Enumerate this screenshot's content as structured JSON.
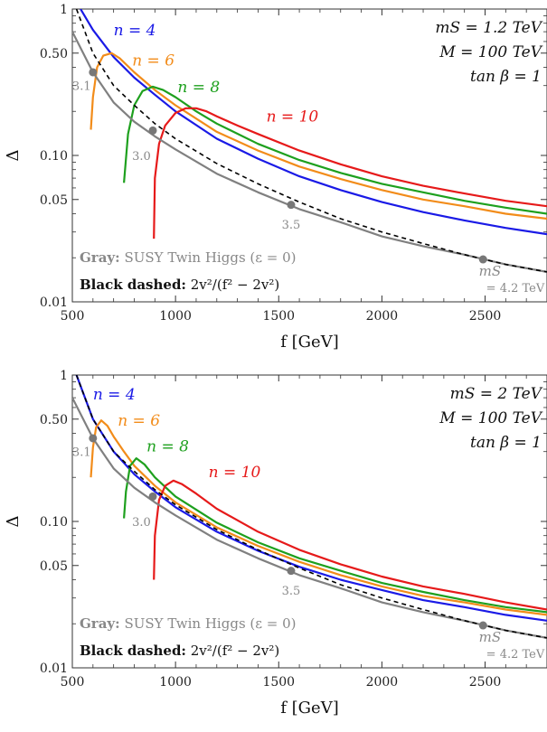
{
  "chart_data": [
    {
      "type": "line",
      "xlabel": "f [GeV]",
      "ylabel": "Δ",
      "xlim": [
        500,
        2800
      ],
      "ylim": [
        0.01,
        1
      ],
      "yscale": "log",
      "xticks": [
        "500",
        "1000",
        "1500",
        "2000",
        "2500"
      ],
      "yticks": [
        "1",
        "0.50",
        "0.10",
        "0.05",
        "0.01"
      ],
      "grid": false,
      "params": [
        "mS = 1.2 TeV",
        "M = 100 TeV",
        "tan β = 1"
      ],
      "legend": {
        "gray_label": "Gray:",
        "gray_text": "SUSY Twin Higgs (ε = 0)",
        "black_label": "Black dashed:",
        "black_text": "2v²/(f² − 2v²)"
      },
      "series": [
        {
          "name": "n = 4",
          "color": "#1a1ae6",
          "style": "solid",
          "x": [
            540,
            600,
            700,
            800,
            900,
            1000,
            1200,
            1400,
            1600,
            1800,
            2000,
            2200,
            2400,
            2600,
            2800
          ],
          "y": [
            1.0,
            0.72,
            0.47,
            0.34,
            0.26,
            0.2,
            0.13,
            0.095,
            0.072,
            0.058,
            0.048,
            0.041,
            0.036,
            0.032,
            0.029
          ]
        },
        {
          "name": "n = 6",
          "color": "#f28c1a",
          "style": "solid",
          "x": [
            590,
            600,
            620,
            650,
            690,
            730,
            800,
            900,
            1000,
            1200,
            1400,
            1600,
            1800,
            2000,
            2200,
            2400,
            2600,
            2800
          ],
          "y": [
            0.15,
            0.25,
            0.4,
            0.48,
            0.5,
            0.46,
            0.37,
            0.28,
            0.22,
            0.145,
            0.108,
            0.084,
            0.069,
            0.058,
            0.05,
            0.045,
            0.04,
            0.037
          ]
        },
        {
          "name": "n = 8",
          "color": "#1ea01e",
          "style": "solid",
          "x": [
            750,
            770,
            800,
            840,
            890,
            940,
            1000,
            1100,
            1200,
            1400,
            1600,
            1800,
            2000,
            2200,
            2400,
            2600,
            2800
          ],
          "y": [
            0.065,
            0.14,
            0.22,
            0.275,
            0.295,
            0.28,
            0.25,
            0.2,
            0.165,
            0.12,
            0.093,
            0.076,
            0.064,
            0.056,
            0.049,
            0.044,
            0.04
          ]
        },
        {
          "name": "n = 10",
          "color": "#e61a1a",
          "style": "solid",
          "x": [
            895,
            900,
            920,
            950,
            1000,
            1050,
            1100,
            1150,
            1200,
            1300,
            1400,
            1600,
            1800,
            2000,
            2200,
            2400,
            2600,
            2800
          ],
          "y": [
            0.027,
            0.07,
            0.12,
            0.16,
            0.195,
            0.21,
            0.21,
            0.2,
            0.185,
            0.16,
            0.14,
            0.108,
            0.087,
            0.072,
            0.062,
            0.055,
            0.049,
            0.045
          ]
        },
        {
          "name": "SUSY Twin Higgs (ε = 0)",
          "color": "#808080",
          "style": "solid",
          "x": [
            500,
            600,
            700,
            800,
            900,
            1000,
            1200,
            1400,
            1600,
            1800,
            2000,
            2200,
            2400,
            2600,
            2800
          ],
          "y": [
            0.7,
            0.37,
            0.23,
            0.17,
            0.135,
            0.11,
            0.075,
            0.056,
            0.043,
            0.035,
            0.028,
            0.024,
            0.021,
            0.018,
            0.016
          ]
        },
        {
          "name": "2v²/(f² − 2v²)",
          "color": "#000000",
          "style": "dashed",
          "x": [
            520,
            600,
            700,
            800,
            900,
            1000,
            1200,
            1400,
            1600,
            1800,
            2000,
            2200,
            2400,
            2600,
            2800
          ],
          "y": [
            1.0,
            0.5,
            0.3,
            0.22,
            0.165,
            0.13,
            0.088,
            0.064,
            0.048,
            0.037,
            0.03,
            0.025,
            0.021,
            0.018,
            0.016
          ]
        }
      ],
      "curve_labels": [
        {
          "text": "n = 4",
          "x": 700,
          "y": 0.66,
          "color": "#1a1ae6"
        },
        {
          "text": "n = 6",
          "x": 790,
          "y": 0.41,
          "color": "#f28c1a"
        },
        {
          "text": "n = 8",
          "x": 1010,
          "y": 0.27,
          "color": "#1ea01e"
        },
        {
          "text": "n = 10",
          "x": 1440,
          "y": 0.17,
          "color": "#e61a1a"
        }
      ],
      "points": [
        {
          "x": 600,
          "y": 0.37,
          "label": "3.1",
          "lx": 545,
          "ly": 0.3
        },
        {
          "x": 890,
          "y": 0.148,
          "label": "3.0",
          "lx": 835,
          "ly": 0.1
        },
        {
          "x": 1560,
          "y": 0.046,
          "label": "3.5",
          "lx": 1560,
          "ly": 0.034
        },
        {
          "x": 2490,
          "y": 0.0195,
          "label": "mS",
          "label2": "= 4.2 TeV",
          "lx": 2470,
          "ly": 0.0155
        }
      ]
    },
    {
      "type": "line",
      "xlabel": "f [GeV]",
      "ylabel": "Δ",
      "xlim": [
        500,
        2800
      ],
      "ylim": [
        0.01,
        1
      ],
      "yscale": "log",
      "xticks": [
        "500",
        "1000",
        "1500",
        "2000",
        "2500"
      ],
      "yticks": [
        "1",
        "0.50",
        "0.10",
        "0.05",
        "0.01"
      ],
      "grid": false,
      "params": [
        "mS = 2 TeV",
        "M = 100 TeV",
        "tan β = 1"
      ],
      "legend": {
        "gray_label": "Gray:",
        "gray_text": "SUSY Twin Higgs (ε = 0)",
        "black_label": "Black dashed:",
        "black_text": "2v²/(f² − 2v²)"
      },
      "series": [
        {
          "name": "n = 4",
          "color": "#1a1ae6",
          "style": "solid",
          "x": [
            520,
            600,
            700,
            800,
            900,
            1000,
            1200,
            1400,
            1600,
            1800,
            2000,
            2200,
            2400,
            2600,
            2800
          ],
          "y": [
            1.0,
            0.5,
            0.3,
            0.21,
            0.16,
            0.125,
            0.085,
            0.063,
            0.049,
            0.04,
            0.034,
            0.029,
            0.026,
            0.023,
            0.021
          ]
        },
        {
          "name": "n = 6",
          "color": "#f28c1a",
          "style": "solid",
          "x": [
            590,
            600,
            615,
            640,
            670,
            700,
            750,
            800,
            900,
            1000,
            1200,
            1400,
            1600,
            1800,
            2000,
            2200,
            2400,
            2600,
            2800
          ],
          "y": [
            0.2,
            0.32,
            0.44,
            0.49,
            0.45,
            0.38,
            0.3,
            0.24,
            0.175,
            0.135,
            0.091,
            0.068,
            0.053,
            0.043,
            0.036,
            0.031,
            0.028,
            0.025,
            0.023
          ]
        },
        {
          "name": "n = 8",
          "color": "#1ea01e",
          "style": "solid",
          "x": [
            750,
            760,
            780,
            810,
            850,
            900,
            1000,
            1200,
            1400,
            1600,
            1800,
            2000,
            2200,
            2400,
            2600,
            2800
          ],
          "y": [
            0.105,
            0.16,
            0.24,
            0.27,
            0.245,
            0.2,
            0.148,
            0.098,
            0.072,
            0.056,
            0.046,
            0.038,
            0.033,
            0.029,
            0.026,
            0.024
          ]
        },
        {
          "name": "n = 10",
          "color": "#e61a1a",
          "style": "solid",
          "x": [
            895,
            900,
            920,
            950,
            990,
            1030,
            1100,
            1200,
            1400,
            1600,
            1800,
            2000,
            2200,
            2400,
            2600,
            2800
          ],
          "y": [
            0.04,
            0.08,
            0.14,
            0.175,
            0.19,
            0.18,
            0.155,
            0.122,
            0.085,
            0.064,
            0.051,
            0.042,
            0.036,
            0.032,
            0.028,
            0.025
          ]
        },
        {
          "name": "SUSY Twin Higgs (ε = 0)",
          "color": "#808080",
          "style": "solid",
          "x": [
            500,
            600,
            700,
            800,
            900,
            1000,
            1200,
            1400,
            1600,
            1800,
            2000,
            2200,
            2400,
            2600,
            2800
          ],
          "y": [
            0.7,
            0.37,
            0.23,
            0.17,
            0.135,
            0.11,
            0.075,
            0.056,
            0.043,
            0.035,
            0.028,
            0.024,
            0.021,
            0.018,
            0.016
          ]
        },
        {
          "name": "2v²/(f² − 2v²)",
          "color": "#000000",
          "style": "dashed",
          "x": [
            520,
            600,
            700,
            800,
            900,
            1000,
            1200,
            1400,
            1600,
            1800,
            2000,
            2200,
            2400,
            2600,
            2800
          ],
          "y": [
            1.0,
            0.5,
            0.3,
            0.22,
            0.165,
            0.13,
            0.088,
            0.064,
            0.048,
            0.037,
            0.03,
            0.025,
            0.021,
            0.018,
            0.016
          ]
        }
      ],
      "curve_labels": [
        {
          "text": "n = 4",
          "x": 600,
          "y": 0.68,
          "color": "#1a1ae6"
        },
        {
          "text": "n = 6",
          "x": 720,
          "y": 0.45,
          "color": "#f28c1a"
        },
        {
          "text": "n = 8",
          "x": 860,
          "y": 0.3,
          "color": "#1ea01e"
        },
        {
          "text": "n = 10",
          "x": 1160,
          "y": 0.2,
          "color": "#e61a1a"
        }
      ],
      "points": [
        {
          "x": 600,
          "y": 0.37,
          "label": "3.1",
          "lx": 545,
          "ly": 0.3
        },
        {
          "x": 890,
          "y": 0.148,
          "label": "3.0",
          "lx": 835,
          "ly": 0.1
        },
        {
          "x": 1560,
          "y": 0.046,
          "label": "3.5",
          "lx": 1560,
          "ly": 0.034
        },
        {
          "x": 2490,
          "y": 0.0195,
          "label": "mS",
          "label2": "= 4.2 TeV",
          "lx": 2470,
          "ly": 0.0155
        }
      ]
    }
  ]
}
